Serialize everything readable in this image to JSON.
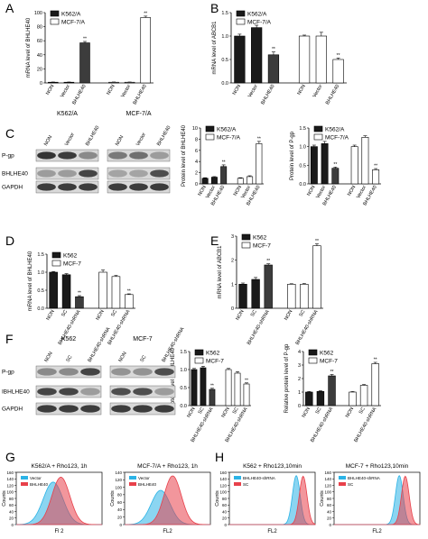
{
  "colors": {
    "black": "#1a1a1a",
    "white": "#ffffff",
    "gray": "#3c3c3c",
    "cyan": "#2bb3e6",
    "red": "#e8404a",
    "blot": "#2a2a2a",
    "blot_bg": "#d9d9d9"
  },
  "panel_letters": [
    "A",
    "B",
    "C",
    "D",
    "E",
    "F",
    "G",
    "H"
  ],
  "blots": [
    {
      "headers": [
        "K562/A",
        "MCF-7/A"
      ],
      "lanes": [
        [
          "NON",
          "Vector",
          "BHLHE40"
        ],
        [
          "NON",
          "Vector",
          "BHLHE40"
        ]
      ],
      "rows": [
        "P-gp",
        "BHLHE40",
        "GAPDH"
      ],
      "intensity": [
        [
          [
            0.95,
            0.9,
            0.45
          ],
          [
            0.55,
            0.6,
            0.35
          ]
        ],
        [
          [
            0.35,
            0.35,
            0.85
          ],
          [
            0.3,
            0.3,
            0.8
          ]
        ],
        [
          [
            0.9,
            0.9,
            0.9
          ],
          [
            0.9,
            0.9,
            0.9
          ]
        ]
      ]
    },
    {
      "headers": [
        "K562",
        "MCF-7"
      ],
      "lanes": [
        [
          "NON",
          "SC",
          "BHLHE40-shRNA"
        ],
        [
          "NON",
          "SC",
          "BHLHE40-shRNA"
        ]
      ],
      "rows": [
        "P-gp",
        "IBHLHE40",
        "GAPDH"
      ],
      "intensity": [
        [
          [
            0.45,
            0.45,
            0.85
          ],
          [
            0.4,
            0.4,
            0.8
          ]
        ],
        [
          [
            0.85,
            0.85,
            0.35
          ],
          [
            0.8,
            0.8,
            0.35
          ]
        ],
        [
          [
            0.9,
            0.9,
            0.9
          ],
          [
            0.9,
            0.9,
            0.9
          ]
        ]
      ]
    }
  ],
  "chart_data": [
    {
      "type": "bar",
      "panel": "A",
      "ylabel": "mRNA level of BHLHE40",
      "ylim": [
        0,
        100
      ],
      "yticks": [
        "0",
        "20",
        "40",
        "60",
        "80",
        "100"
      ],
      "categories": [
        "NON",
        "Vector",
        "BHLHE40",
        "NON",
        "Vector",
        "BHLHE40"
      ],
      "values": [
        1,
        1,
        57,
        1,
        1,
        93
      ],
      "errors": [
        0.3,
        0.3,
        2,
        0.3,
        0.3,
        2
      ],
      "fills": [
        "black",
        "black",
        "gray",
        "white",
        "white",
        "white"
      ],
      "sig": [
        "",
        "",
        "**",
        "",
        "",
        "**"
      ],
      "legend": [
        "K562/A",
        "MCF-7/A"
      ]
    },
    {
      "type": "bar",
      "panel": "B",
      "ylabel": "mRNA level of ABCB1",
      "ylim": [
        0,
        1.5
      ],
      "yticks": [
        "0.0",
        "0.5",
        "1.0",
        "1.5"
      ],
      "categories": [
        "NON",
        "Vector",
        "BHLHE40",
        "NON",
        "Vector",
        "BHLHE40"
      ],
      "values": [
        1.0,
        1.18,
        0.6,
        1.0,
        1.0,
        0.5
      ],
      "errors": [
        0.04,
        0.05,
        0.06,
        0.02,
        0.08,
        0.03
      ],
      "fills": [
        "black",
        "black",
        "gray",
        "white",
        "white",
        "white"
      ],
      "sig": [
        "",
        "",
        "**",
        "",
        "",
        "**"
      ],
      "legend": [
        "K562/A",
        "MCF-7/A"
      ]
    },
    {
      "type": "bar",
      "panel": "C1",
      "ylabel": "Protein level of BHLHE40",
      "ylim": [
        0,
        10
      ],
      "yticks": [
        "0",
        "2",
        "4",
        "6",
        "8",
        "10"
      ],
      "categories": [
        "NON",
        "Vector",
        "BHLHE40",
        "NON",
        "Vector",
        "BHLHE40"
      ],
      "values": [
        1,
        1.2,
        3.1,
        1,
        1.3,
        7.2
      ],
      "errors": [
        0.1,
        0.1,
        0.3,
        0.1,
        0.15,
        0.4
      ],
      "fills": [
        "black",
        "black",
        "gray",
        "white",
        "white",
        "white"
      ],
      "sig": [
        "",
        "",
        "**",
        "",
        "",
        "**"
      ],
      "legend": [
        "K562/A",
        "MCF-7/A"
      ]
    },
    {
      "type": "bar",
      "panel": "C2",
      "ylabel": "Protein level of P-gp",
      "ylim": [
        0,
        1.5
      ],
      "yticks": [
        "0.0",
        "0.5",
        "1.0",
        "1.5"
      ],
      "categories": [
        "NON",
        "Vector",
        "BHLHE40",
        "NON",
        "Vector",
        "BHLHE40"
      ],
      "values": [
        1.0,
        1.08,
        0.42,
        1.0,
        1.25,
        0.38
      ],
      "errors": [
        0.04,
        0.06,
        0.03,
        0.04,
        0.04,
        0.03
      ],
      "fills": [
        "black",
        "black",
        "gray",
        "white",
        "white",
        "white"
      ],
      "sig": [
        "",
        "",
        "**",
        "",
        "",
        "**"
      ],
      "legend": [
        "K562/A",
        "MCF-7/A"
      ]
    },
    {
      "type": "bar",
      "panel": "D",
      "ylabel": "mRNA level of BHLHE40",
      "ylim": [
        0,
        1.5
      ],
      "yticks": [
        "0.0",
        "0.5",
        "1.0",
        "1.5"
      ],
      "categories": [
        "NON",
        "SC",
        "BHLHE40-shRNA",
        "NON",
        "SC",
        "BHLHE40-shRNA"
      ],
      "values": [
        1.0,
        0.93,
        0.32,
        1.0,
        0.88,
        0.38
      ],
      "errors": [
        0.02,
        0.03,
        0.03,
        0.06,
        0.03,
        0.02
      ],
      "fills": [
        "black",
        "black",
        "gray",
        "white",
        "white",
        "white"
      ],
      "sig": [
        "",
        "",
        "**",
        "",
        "",
        "**"
      ],
      "legend": [
        "K562",
        "MCF-7"
      ]
    },
    {
      "type": "bar",
      "panel": "E",
      "ylabel": "mRNA level of ABCB1",
      "ylim": [
        0,
        3
      ],
      "yticks": [
        "0",
        "1",
        "2",
        "3"
      ],
      "categories": [
        "NON",
        "SC",
        "BHLHE40-shRNA",
        "NON",
        "SC",
        "BHLHE40-shRNA"
      ],
      "values": [
        1.0,
        1.2,
        1.8,
        1.0,
        1.0,
        2.6
      ],
      "errors": [
        0.05,
        0.08,
        0.05,
        0.02,
        0.03,
        0.08
      ],
      "fills": [
        "black",
        "black",
        "gray",
        "white",
        "white",
        "white"
      ],
      "sig": [
        "",
        "",
        "**",
        "",
        "",
        "**"
      ],
      "legend": [
        "K562",
        "MCF-7"
      ]
    },
    {
      "type": "bar",
      "panel": "F1",
      "ylabel": "Protein level of BHLHE40",
      "ylim": [
        0,
        1.5
      ],
      "yticks": [
        "0.0",
        "0.5",
        "1.0",
        "1.5"
      ],
      "categories": [
        "NON",
        "SC",
        "BHLHE40-shRNA",
        "NON",
        "SC",
        "BHLHE40-shRNA"
      ],
      "values": [
        1.0,
        1.05,
        0.45,
        1.0,
        0.9,
        0.6
      ],
      "errors": [
        0.03,
        0.04,
        0.03,
        0.03,
        0.04,
        0.03
      ],
      "fills": [
        "black",
        "black",
        "gray",
        "white",
        "white",
        "white"
      ],
      "sig": [
        "",
        "",
        "**",
        "",
        "",
        "**"
      ],
      "legend": [
        "K562",
        "MCF-7"
      ]
    },
    {
      "type": "bar",
      "panel": "F2",
      "ylabel": "Relative protein level of P-gp",
      "ylim": [
        0,
        4
      ],
      "yticks": [
        "0",
        "1",
        "2",
        "3",
        "4"
      ],
      "categories": [
        "NON",
        "SC",
        "BHLHE40-shRNA",
        "NON",
        "SC",
        "BHLHE40-shRNA"
      ],
      "values": [
        1.0,
        1.05,
        2.2,
        1.0,
        1.5,
        3.1
      ],
      "errors": [
        0.04,
        0.05,
        0.1,
        0.04,
        0.06,
        0.1
      ],
      "fills": [
        "black",
        "black",
        "gray",
        "white",
        "white",
        "white"
      ],
      "sig": [
        "",
        "",
        "**",
        "",
        "",
        "**"
      ],
      "legend": [
        "K562",
        "MCF-7"
      ]
    },
    {
      "type": "area",
      "panel": "G1",
      "title": "K562/A + Rho123, 1h",
      "xlabel": "Fl 2",
      "ylabel": "Counts",
      "yticks": [
        "0",
        "20",
        "40",
        "60",
        "80",
        "100",
        "120",
        "140",
        "160"
      ],
      "xlim": [
        0,
        10
      ],
      "ylim": [
        0,
        160
      ],
      "series": [
        {
          "name": "Vector",
          "color": "cyan",
          "center": 4.3,
          "width": 1.15,
          "peak": 130
        },
        {
          "name": "BHLHE40",
          "color": "red",
          "center": 5.2,
          "width": 1.05,
          "peak": 145
        }
      ]
    },
    {
      "type": "area",
      "panel": "G2",
      "title": "MCF-7/A + Rho123, 1h",
      "xlabel": "FL2",
      "ylabel": "Counts",
      "yticks": [
        "0",
        "20",
        "40",
        "60",
        "80",
        "100",
        "120",
        "140"
      ],
      "xlim": [
        0,
        10
      ],
      "ylim": [
        0,
        145
      ],
      "series": [
        {
          "name": "Vector",
          "color": "cyan",
          "center": 4.2,
          "width": 1.1,
          "peak": 95
        },
        {
          "name": "BHLHE40",
          "color": "red",
          "center": 5.6,
          "width": 1.0,
          "peak": 135
        }
      ]
    },
    {
      "type": "area",
      "panel": "H1",
      "title": "K562 + Rho123,10min",
      "xlabel": "FL2",
      "ylabel": "Counts",
      "yticks": [
        "0",
        "20",
        "40",
        "60",
        "80",
        "100",
        "120",
        "140",
        "160"
      ],
      "xlim": [
        0,
        10
      ],
      "ylim": [
        0,
        160
      ],
      "series": [
        {
          "name": "BHLHE40-shRNA",
          "color": "cyan",
          "center": 7.8,
          "width": 0.45,
          "peak": 150
        },
        {
          "name": "SC",
          "color": "red",
          "center": 8.6,
          "width": 0.45,
          "peak": 148
        }
      ]
    },
    {
      "type": "area",
      "panel": "H2",
      "title": "MCF-7 + Rho123,10min",
      "xlabel": "FL2",
      "ylabel": "Counts",
      "yticks": [
        "0",
        "20",
        "40",
        "60",
        "80",
        "100",
        "120",
        "140",
        "160"
      ],
      "xlim": [
        0,
        10
      ],
      "ylim": [
        0,
        160
      ],
      "series": [
        {
          "name": "BHLHE40-shRNA",
          "color": "cyan",
          "center": 7.6,
          "width": 0.45,
          "peak": 150
        },
        {
          "name": "SC",
          "color": "red",
          "center": 8.3,
          "width": 0.45,
          "peak": 148
        }
      ]
    }
  ]
}
